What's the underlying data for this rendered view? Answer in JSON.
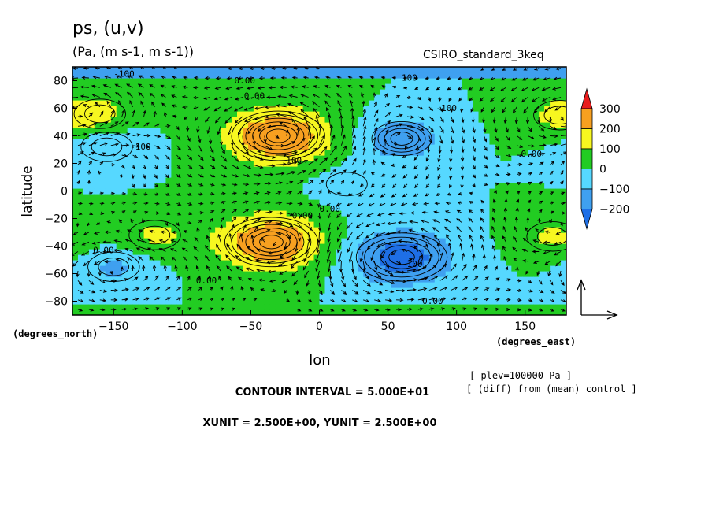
{
  "chart_data": {
    "type": "heatmap",
    "title": "ps, (u,v)",
    "units": "(Pa, (m s-1, m s-1))",
    "model": "CSIRO_standard_3keq",
    "xlabel": "lon",
    "ylabel": "latitude",
    "x_units": "(degrees_east)",
    "y_units": "(degrees_north)",
    "xlim": [
      -180,
      180
    ],
    "ylim": [
      -90,
      90
    ],
    "x_ticks": [
      -150,
      -100,
      -50,
      0,
      50,
      100,
      150
    ],
    "y_ticks": [
      -80,
      -60,
      -40,
      -20,
      0,
      20,
      40,
      60,
      80
    ],
    "colorbar": {
      "levels": [
        -300,
        -200,
        -100,
        0,
        100,
        200,
        300
      ],
      "labels": [
        "300",
        "200",
        "100",
        "0",
        "−100",
        "−200"
      ],
      "colors": [
        "#1e6fe6",
        "#3fa0f0",
        "#56d8ff",
        "#22cc22",
        "#f7f720",
        "#f7a020",
        "#e81c1c"
      ]
    },
    "contour_labels": [
      "-100",
      "0.00",
      "0.00",
      "100",
      "-100",
      "-100",
      "-100",
      "0.00",
      "0.00",
      "0.00",
      "0.00",
      "0.00",
      "0.00",
      "-100"
    ],
    "centers": [
      {
        "lon": -30,
        "lat": 40,
        "value": 300
      },
      {
        "lon": -35,
        "lat": -37,
        "value": 300
      },
      {
        "lon": 60,
        "lat": 38,
        "value": -200
      },
      {
        "lon": 60,
        "lat": -48,
        "value": -250
      },
      {
        "lon": -155,
        "lat": 32,
        "value": -100
      },
      {
        "lon": -120,
        "lat": -32,
        "value": 120
      },
      {
        "lon": 170,
        "lat": -33,
        "value": 120
      },
      {
        "lon": -160,
        "lat": 56,
        "value": 110
      },
      {
        "lon": 175,
        "lat": 55,
        "value": 110
      },
      {
        "lon": -150,
        "lat": -55,
        "value": -120
      },
      {
        "lon": 20,
        "lat": 5,
        "value": -70
      }
    ],
    "vector_reference": {
      "xunit": 2.5,
      "yunit": 2.5
    }
  },
  "footer": {
    "contour_interval": "CONTOUR INTERVAL = 5.000E+01",
    "vector_units": "XUNIT = 2.500E+00, YUNIT = 2.500E+00",
    "plev": "[ plev=100000 Pa ]",
    "diff": "[ (diff) from (mean) control ]"
  }
}
